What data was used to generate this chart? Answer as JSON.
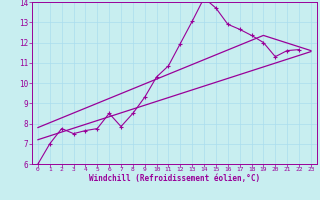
{
  "bg_color": "#c8eef0",
  "line_color": "#990099",
  "grid_color": "#aaddee",
  "xlabel": "Windchill (Refroidissement éolien,°C)",
  "xlabel_color": "#990099",
  "tick_color": "#990099",
  "spine_color": "#990099",
  "xlim": [
    -0.5,
    23.5
  ],
  "ylim": [
    6,
    14
  ],
  "yticks": [
    6,
    7,
    8,
    9,
    10,
    11,
    12,
    13,
    14
  ],
  "xticks": [
    0,
    1,
    2,
    3,
    4,
    5,
    6,
    7,
    8,
    9,
    10,
    11,
    12,
    13,
    14,
    15,
    16,
    17,
    18,
    19,
    20,
    21,
    22,
    23
  ],
  "main_x": [
    0,
    1,
    2,
    3,
    4,
    5,
    6,
    7,
    8,
    9,
    10,
    11,
    12,
    13,
    14,
    15,
    16,
    17,
    18,
    19,
    20,
    21,
    22
  ],
  "main_y": [
    6.0,
    7.0,
    7.75,
    7.5,
    7.65,
    7.75,
    8.5,
    7.85,
    8.5,
    9.3,
    10.3,
    10.85,
    11.95,
    13.05,
    14.2,
    13.7,
    12.9,
    12.65,
    12.35,
    12.0,
    11.3,
    11.6,
    11.65
  ],
  "trend1_x": [
    0,
    23
  ],
  "trend1_y": [
    7.2,
    11.55
  ],
  "trend2_x": [
    0,
    19,
    23
  ],
  "trend2_y": [
    7.8,
    12.35,
    11.6
  ],
  "marker": "+"
}
